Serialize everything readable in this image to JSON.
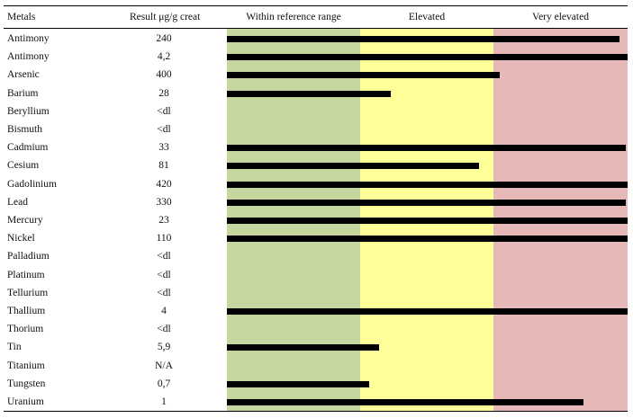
{
  "headers": {
    "metals": "Metals",
    "result": "Result μg/g creat",
    "within": "Within reference range",
    "elevated": "Elevated",
    "very_elevated": "Very elevated"
  },
  "colors": {
    "within": "#c5d79f",
    "elevated": "#ffff99",
    "very_elevated": "#e6b8b8"
  },
  "rows": [
    {
      "metal": "Antimony",
      "result": "240",
      "level": 0.98
    },
    {
      "metal": "Antimony",
      "result": "4,2",
      "level": 1.0
    },
    {
      "metal": "Arsenic",
      "result": "400",
      "level": 0.68
    },
    {
      "metal": "Barium",
      "result": "28",
      "level": 0.41
    },
    {
      "metal": "Beryllium",
      "result": "<dl",
      "level": null
    },
    {
      "metal": "Bismuth",
      "result": "<dl",
      "level": null
    },
    {
      "metal": "Cadmium",
      "result": "33",
      "level": 0.995
    },
    {
      "metal": "Cesium",
      "result": "81",
      "level": 0.63
    },
    {
      "metal": "Gadolinium",
      "result": "420",
      "level": 1.0
    },
    {
      "metal": "Lead",
      "result": "330",
      "level": 0.995
    },
    {
      "metal": "Mercury",
      "result": "23",
      "level": 1.0
    },
    {
      "metal": "Nickel",
      "result": "110",
      "level": 1.0
    },
    {
      "metal": "Palladium",
      "result": "<dl",
      "level": null
    },
    {
      "metal": "Platinum",
      "result": "<dl",
      "level": null
    },
    {
      "metal": "Tellurium",
      "result": "<dl",
      "level": null
    },
    {
      "metal": "Thallium",
      "result": "4",
      "level": 1.0
    },
    {
      "metal": "Thorium",
      "result": "<dl",
      "level": null
    },
    {
      "metal": "Tin",
      "result": "5,9",
      "level": 0.38
    },
    {
      "metal": "Titanium",
      "result": "N/A",
      "level": null
    },
    {
      "metal": "Tungsten",
      "result": "0,7",
      "level": 0.355
    },
    {
      "metal": "Uranium",
      "result": "1",
      "level": 0.89
    }
  ]
}
